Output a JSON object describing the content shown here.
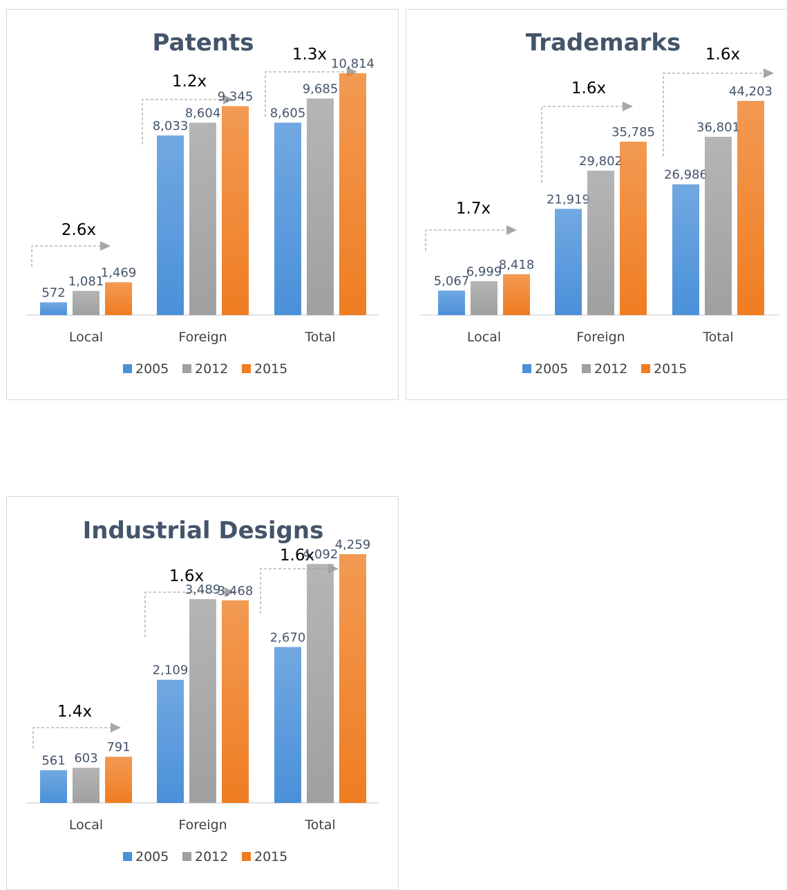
{
  "colors": {
    "2005": "#4a90d9",
    "2012": "#a0a0a0",
    "2015": "#ef7d22",
    "title": "#44546a",
    "data_label": "#44546a",
    "axis_line": "#d9d9d9",
    "arrow": "#a6a6a6"
  },
  "legend": [
    {
      "name": "2005",
      "color": "#4a90d9"
    },
    {
      "name": "2012",
      "color": "#a0a0a0"
    },
    {
      "name": "2015",
      "color": "#ef7d22"
    }
  ],
  "chart_data": [
    {
      "type": "bar",
      "title": "Patents",
      "categories": [
        "Local",
        "Foreign",
        "Total"
      ],
      "series": [
        {
          "name": "2005",
          "values": [
            572,
            8033,
            8605
          ]
        },
        {
          "name": "2012",
          "values": [
            1081,
            8604,
            9685
          ]
        },
        {
          "name": "2015",
          "values": [
            1469,
            9345,
            10814
          ]
        }
      ],
      "data_labels": [
        [
          "572",
          "8,033",
          "8,605"
        ],
        [
          "1,081",
          "8,604",
          "9,685"
        ],
        [
          "1,469",
          "9,345",
          "10,814"
        ]
      ],
      "annotations": [
        "2.6x",
        "1.2x",
        "1.3x"
      ],
      "legend_position": "bottom",
      "grid": false
    },
    {
      "type": "bar",
      "title": "Trademarks",
      "categories": [
        "Local",
        "Foreign",
        "Total"
      ],
      "series": [
        {
          "name": "2005",
          "values": [
            5067,
            21919,
            26986
          ]
        },
        {
          "name": "2012",
          "values": [
            6999,
            29802,
            36801
          ]
        },
        {
          "name": "2015",
          "values": [
            8418,
            35785,
            44203
          ]
        }
      ],
      "data_labels": [
        [
          "5,067",
          "21,919",
          "26,986"
        ],
        [
          "6,999",
          "29,802",
          "36,801"
        ],
        [
          "8,418",
          "35,785",
          "44,203"
        ]
      ],
      "annotations": [
        "1.7x",
        "1.6x",
        "1.6x"
      ],
      "legend_position": "bottom",
      "grid": false
    },
    {
      "type": "bar",
      "title": "Industrial Designs",
      "categories": [
        "Local",
        "Foreign",
        "Total"
      ],
      "series": [
        {
          "name": "2005",
          "values": [
            561,
            2109,
            2670
          ]
        },
        {
          "name": "2012",
          "values": [
            603,
            3489,
            4092
          ]
        },
        {
          "name": "2015",
          "values": [
            791,
            3468,
            4259
          ]
        }
      ],
      "data_labels": [
        [
          "561",
          "2,109",
          "2,670"
        ],
        [
          "603",
          "3,489",
          "4,092"
        ],
        [
          "791",
          "3,468",
          "4,259"
        ]
      ],
      "annotations": [
        "1.4x",
        "1.6x",
        "1.6x"
      ],
      "legend_position": "bottom",
      "grid": false
    }
  ]
}
